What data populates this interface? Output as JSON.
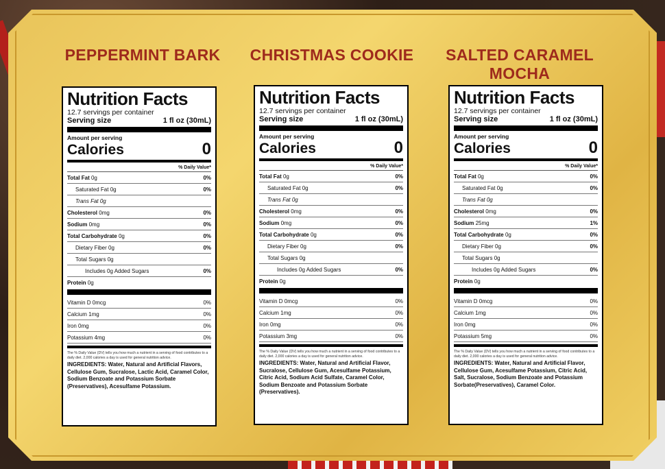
{
  "colors": {
    "gold": "#e9c45a",
    "title_red": "#9e2a1c"
  },
  "products": [
    {
      "title": "PEPPERMINT BARK",
      "label": {
        "heading": "Nutrition Facts",
        "servings": "12.7 servings per container",
        "serving_size_label": "Serving size",
        "serving_size_value": "1 fl oz (30mL)",
        "amount_per_serving": "Amount per serving",
        "calories_label": "Calories",
        "calories_value": "0",
        "dv_header": "% Daily Value*",
        "total_fat": "Total Fat",
        "total_fat_amt": "0g",
        "total_fat_pct": "0%",
        "sat_fat": "Saturated Fat 0g",
        "sat_fat_pct": "0%",
        "trans_fat": "Trans Fat 0g",
        "cholesterol": "Cholesterol",
        "cholesterol_amt": "0mg",
        "cholesterol_pct": "0%",
        "sodium": "Sodium",
        "sodium_amt": "0mg",
        "sodium_pct": "0%",
        "carb": "Total Carbohydrate",
        "carb_amt": "0g",
        "carb_pct": "0%",
        "fiber": "Dietary Fiber 0g",
        "fiber_pct": "0%",
        "sugars": "Total Sugars 0g",
        "added": "Includes 0g Added Sugars",
        "added_pct": "0%",
        "protein": "Protein",
        "protein_amt": "0g",
        "vitd": "Vitamin D 0mcg",
        "vitd_pct": "0%",
        "calcium": "Calcium 1mg",
        "calcium_pct": "0%",
        "iron": "Iron 0mg",
        "iron_pct": "0%",
        "potassium": "Potassium 4mg",
        "potassium_pct": "0%",
        "footnote": "The % Daily Value (DV) tells you how much a nutrient in a serving of food contributes to a daily diet. 2,000 calories a day is used for general nutrition advice.",
        "ingredients": "INGREDIENTS: Water, Natural and Artificial Flavors, Cellulose Gum, Sucralose, Lactic Acid, Caramel Color, Sodium Benzoate and Potassium Sorbate (Preservatives), Acesulfame Potassium."
      }
    },
    {
      "title": "CHRISTMAS COOKIE",
      "label": {
        "heading": "Nutrition Facts",
        "servings": "12.7 servings per container",
        "serving_size_label": "Serving size",
        "serving_size_value": "1 fl oz (30mL)",
        "amount_per_serving": "Amount per serving",
        "calories_label": "Calories",
        "calories_value": "0",
        "dv_header": "% Daily Value*",
        "total_fat": "Total Fat",
        "total_fat_amt": "0g",
        "total_fat_pct": "0%",
        "sat_fat": "Saturated Fat 0g",
        "sat_fat_pct": "0%",
        "trans_fat": "Trans Fat 0g",
        "cholesterol": "Cholesterol",
        "cholesterol_amt": "0mg",
        "cholesterol_pct": "0%",
        "sodium": "Sodium",
        "sodium_amt": "0mg",
        "sodium_pct": "0%",
        "carb": "Total Carbohydrate",
        "carb_amt": "0g",
        "carb_pct": "0%",
        "fiber": "Dietary Fiber 0g",
        "fiber_pct": "0%",
        "sugars": "Total Sugars 0g",
        "added": "Includes 0g Added Sugars",
        "added_pct": "0%",
        "protein": "Protein",
        "protein_amt": "0g",
        "vitd": "Vitamin D 0mcg",
        "vitd_pct": "0%",
        "calcium": "Calcium 1mg",
        "calcium_pct": "0%",
        "iron": "Iron 0mg",
        "iron_pct": "0%",
        "potassium": "Potassium 3mg",
        "potassium_pct": "0%",
        "footnote": "The % Daily Value (DV) tells you how much a nutrient in a serving of food contributes to a daily diet. 2,000 calories a day is used for general nutrition advice.",
        "ingredients": "INGREDIENTS: Water, Natural and Artificial Flavor, Sucralose, Cellulose Gum, Acesulfame Potassium, Citric Acid, Sodium Acid Sulfate, Caramel Color, Sodium Benzoate and Potassium Sorbate (Preservatives)."
      }
    },
    {
      "title": "SALTED CARAMEL MOCHA",
      "label": {
        "heading": "Nutrition Facts",
        "servings": "12.7 servings per container",
        "serving_size_label": "Serving size",
        "serving_size_value": "1 fl oz (30mL)",
        "amount_per_serving": "Amount per serving",
        "calories_label": "Calories",
        "calories_value": "0",
        "dv_header": "% Daily Value*",
        "total_fat": "Total Fat",
        "total_fat_amt": "0g",
        "total_fat_pct": "0%",
        "sat_fat": "Saturated Fat 0g",
        "sat_fat_pct": "0%",
        "trans_fat": "Trans Fat 0g",
        "cholesterol": "Cholesterol",
        "cholesterol_amt": "0mg",
        "cholesterol_pct": "0%",
        "sodium": "Sodium",
        "sodium_amt": "25mg",
        "sodium_pct": "1%",
        "carb": "Total Carbohydrate",
        "carb_amt": "0g",
        "carb_pct": "0%",
        "fiber": "Dietary Fiber 0g",
        "fiber_pct": "0%",
        "sugars": "Total Sugars 0g",
        "added": "Includes 0g Added Sugars",
        "added_pct": "0%",
        "protein": "Protein",
        "protein_amt": "0g",
        "vitd": "Vitamin D 0mcg",
        "vitd_pct": "0%",
        "calcium": "Calcium 1mg",
        "calcium_pct": "0%",
        "iron": "Iron 0mg",
        "iron_pct": "0%",
        "potassium": "Potassium 5mg",
        "potassium_pct": "0%",
        "footnote": "The % Daily Value (DV) tells you how much a nutrient in a serving of food contributes to a daily diet. 2,000 calories a day is used for general nutrition advice.",
        "ingredients": "INGREDIENTS: Water, Natural and Artificial Flavor, Cellulose Gum, Acesulfame Potassium, Citric Acid, Salt, Sucralose, Sodium Benzoate and Potassium Sorbate(Preservatives), Caramel Color."
      }
    }
  ]
}
